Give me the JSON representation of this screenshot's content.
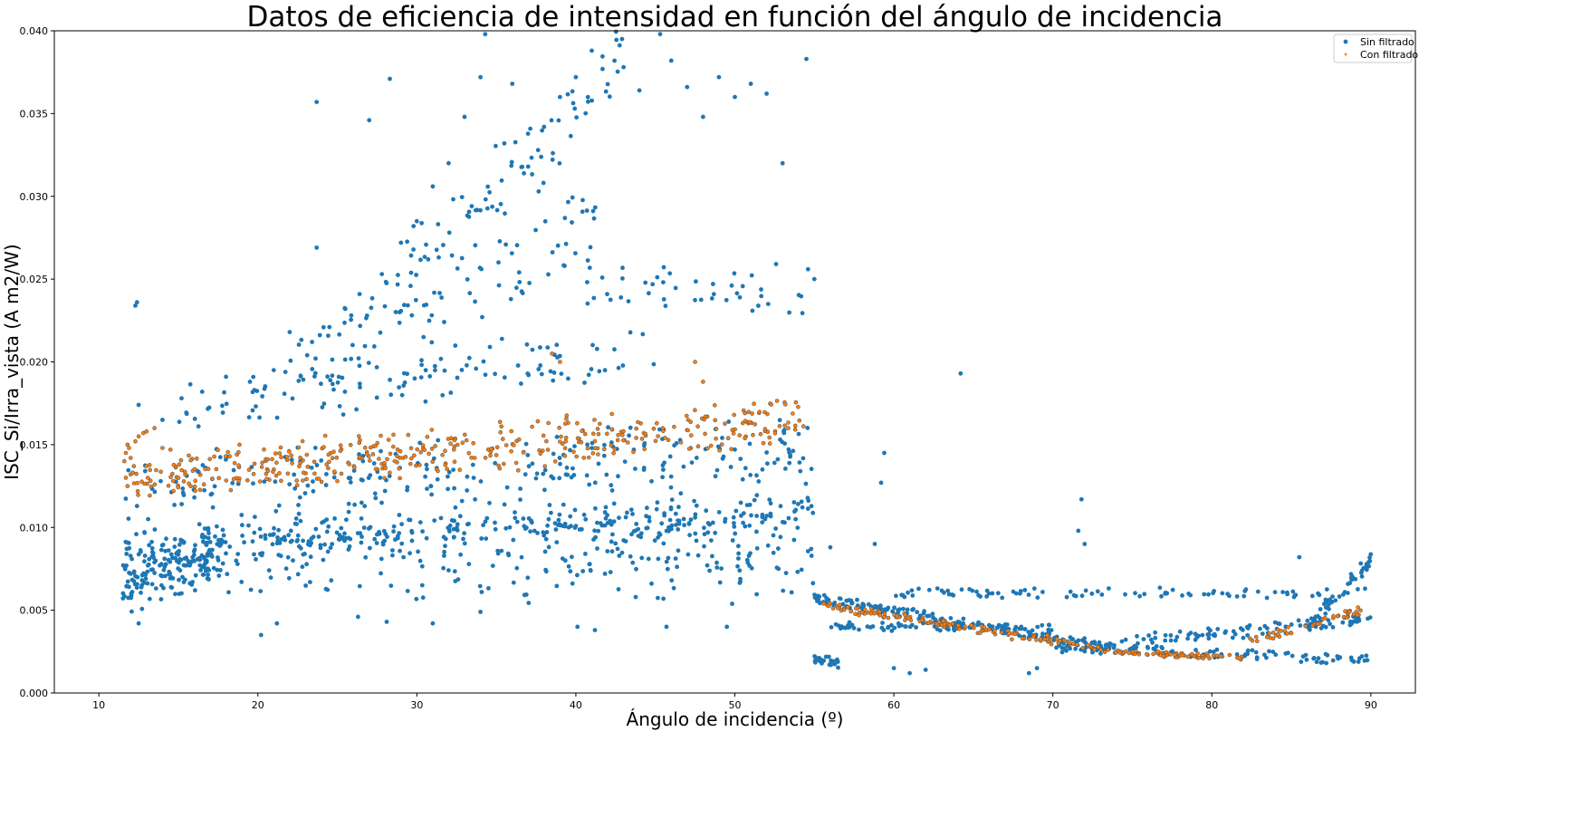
{
  "chart_data": {
    "type": "scatter",
    "title": "Datos de eficiencia de intensidad en función del ángulo de incidencia",
    "xlabel": "Ángulo de incidencia (º)",
    "ylabel": "ISC_Si/Irra_vista (A m2/W)",
    "xlim": [
      7.2,
      92.8
    ],
    "ylim": [
      0.0,
      0.04
    ],
    "x_ticks": [
      10,
      20,
      30,
      40,
      50,
      60,
      70,
      80,
      90
    ],
    "x_tick_labels": [
      "10",
      "20",
      "30",
      "40",
      "50",
      "60",
      "70",
      "80",
      "90"
    ],
    "y_ticks": [
      0.0,
      0.005,
      0.01,
      0.015,
      0.02,
      0.025,
      0.03,
      0.035,
      0.04
    ],
    "y_tick_labels": [
      "0.000",
      "0.005",
      "0.010",
      "0.015",
      "0.020",
      "0.025",
      "0.030",
      "0.035",
      "0.040"
    ],
    "grid": false,
    "legend_position": "top-right",
    "series": [
      {
        "name": "Sin filtrado",
        "color": "#1f77b4",
        "marker": "large-dot",
        "values": [
          [
            12.3,
            0.0234
          ],
          [
            12.4,
            0.0236
          ],
          [
            12.5,
            0.0174
          ],
          [
            12.5,
            0.0042
          ],
          [
            13.1,
            0.0105
          ],
          [
            14.0,
            0.0165
          ],
          [
            15.2,
            0.0178
          ],
          [
            16.5,
            0.0182
          ],
          [
            18.0,
            0.0191
          ],
          [
            19.5,
            0.0188
          ],
          [
            21.0,
            0.0195
          ],
          [
            22.0,
            0.0218
          ],
          [
            23.1,
            0.0204
          ],
          [
            23.7,
            0.0357
          ],
          [
            23.7,
            0.0269
          ],
          [
            24.5,
            0.0221
          ],
          [
            25.5,
            0.0232
          ],
          [
            26.4,
            0.0241
          ],
          [
            27.0,
            0.0346
          ],
          [
            27.8,
            0.0253
          ],
          [
            28.3,
            0.0371
          ],
          [
            29.0,
            0.0272
          ],
          [
            30.0,
            0.0285
          ],
          [
            31.0,
            0.0306
          ],
          [
            32.0,
            0.032
          ],
          [
            33.0,
            0.0348
          ],
          [
            34.0,
            0.0372
          ],
          [
            34.3,
            0.0398
          ],
          [
            35.5,
            0.0332
          ],
          [
            36.0,
            0.0368
          ],
          [
            37.0,
            0.0318
          ],
          [
            38.0,
            0.0342
          ],
          [
            39.0,
            0.036
          ],
          [
            40.0,
            0.0372
          ],
          [
            41.0,
            0.0388
          ],
          [
            42.0,
            0.0402
          ],
          [
            43.0,
            0.0378
          ],
          [
            44.0,
            0.0364
          ],
          [
            45.3,
            0.0398
          ],
          [
            46.0,
            0.0382
          ],
          [
            47.0,
            0.0366
          ],
          [
            48.0,
            0.0348
          ],
          [
            49.0,
            0.0372
          ],
          [
            50.0,
            0.036
          ],
          [
            51.0,
            0.0368
          ],
          [
            52.0,
            0.0362
          ],
          [
            53.0,
            0.032
          ],
          [
            54.5,
            0.0383
          ],
          [
            55.0,
            0.025
          ],
          [
            54.6,
            0.0256
          ],
          [
            20.2,
            0.0035
          ],
          [
            21.2,
            0.0042
          ],
          [
            26.3,
            0.0046
          ],
          [
            28.1,
            0.0043
          ],
          [
            31.0,
            0.0042
          ],
          [
            34.0,
            0.0049
          ],
          [
            40.1,
            0.004
          ],
          [
            41.2,
            0.0038
          ],
          [
            45.7,
            0.004
          ],
          [
            49.5,
            0.004
          ],
          [
            54.8,
            0.0087
          ],
          [
            56.0,
            0.0088
          ],
          [
            58.8,
            0.009
          ],
          [
            59.2,
            0.0127
          ],
          [
            59.4,
            0.0145
          ],
          [
            64.2,
            0.0193
          ],
          [
            71.6,
            0.0098
          ],
          [
            71.8,
            0.0117
          ],
          [
            72.0,
            0.009
          ],
          [
            85.5,
            0.0082
          ],
          [
            60.0,
            0.0015
          ],
          [
            61.0,
            0.0012
          ],
          [
            62.0,
            0.0014
          ],
          [
            68.5,
            0.0012
          ],
          [
            69.0,
            0.0015
          ]
        ],
        "bands": [
          {
            "x_from": 11.5,
            "x_to": 55.0,
            "y_from": 0.009,
            "y_to": 0.0108,
            "y_spread": 0.0014,
            "count": 320
          },
          {
            "x_from": 11.5,
            "x_to": 18.0,
            "y_from": 0.0065,
            "y_to": 0.0085,
            "y_spread": 0.002,
            "count": 170
          },
          {
            "x_from": 18.0,
            "x_to": 55.0,
            "y_from": 0.0085,
            "y_to": 0.008,
            "y_spread": 0.003,
            "count": 220
          },
          {
            "x_from": 11.5,
            "x_to": 55.0,
            "y_from": 0.012,
            "y_to": 0.0145,
            "y_spread": 0.0025,
            "count": 240
          },
          {
            "x_from": 15.0,
            "x_to": 45.0,
            "y_from": 0.017,
            "y_to": 0.021,
            "y_spread": 0.002,
            "count": 110
          },
          {
            "x_from": 22.0,
            "x_to": 42.0,
            "y_from": 0.019,
            "y_to": 0.029,
            "y_spread": 0.003,
            "count": 90
          },
          {
            "x_from": 26.0,
            "x_to": 43.0,
            "y_from": 0.022,
            "y_to": 0.038,
            "y_spread": 0.003,
            "count": 90
          },
          {
            "x_from": 40.0,
            "x_to": 55.0,
            "y_from": 0.025,
            "y_to": 0.024,
            "y_spread": 0.002,
            "count": 45
          },
          {
            "x_from": 55.0,
            "x_to": 56.5,
            "y_from": 0.0021,
            "y_to": 0.0018,
            "y_spread": 0.0003,
            "count": 25
          },
          {
            "x_from": 55.0,
            "x_to": 72.0,
            "y_from": 0.0058,
            "y_to": 0.003,
            "y_spread": 0.0004,
            "count": 160
          },
          {
            "x_from": 72.0,
            "x_to": 90.0,
            "y_from": 0.0028,
            "y_to": 0.0045,
            "y_spread": 0.0005,
            "count": 110
          },
          {
            "x_from": 60.0,
            "x_to": 90.0,
            "y_from": 0.006,
            "y_to": 0.006,
            "y_spread": 0.0004,
            "count": 90
          },
          {
            "x_from": 70.0,
            "x_to": 90.0,
            "y_from": 0.0028,
            "y_to": 0.002,
            "y_spread": 0.0004,
            "count": 95
          },
          {
            "x_from": 86.0,
            "x_to": 90.0,
            "y_from": 0.004,
            "y_to": 0.008,
            "y_spread": 0.0006,
            "count": 50
          },
          {
            "x_from": 56.0,
            "x_to": 70.0,
            "y_from": 0.004,
            "y_to": 0.004,
            "y_spread": 0.0003,
            "count": 70
          }
        ]
      },
      {
        "name": "Con filtrado",
        "color": "#ff7f0e",
        "marker": "small-dot",
        "values": [
          [
            11.6,
            0.014
          ],
          [
            11.7,
            0.0145
          ],
          [
            11.8,
            0.015
          ],
          [
            11.9,
            0.0148
          ],
          [
            12.0,
            0.0142
          ],
          [
            11.7,
            0.013
          ],
          [
            11.8,
            0.0125
          ],
          [
            12.0,
            0.0132
          ],
          [
            12.2,
            0.0137
          ],
          [
            12.3,
            0.0152
          ],
          [
            12.5,
            0.0155
          ],
          [
            12.8,
            0.0157
          ],
          [
            13.0,
            0.0158
          ],
          [
            13.5,
            0.016
          ],
          [
            14.0,
            0.0148
          ],
          [
            14.5,
            0.0147
          ],
          [
            38.5,
            0.0205
          ],
          [
            39.0,
            0.02
          ],
          [
            47.5,
            0.02
          ],
          [
            48.0,
            0.0188
          ]
        ],
        "bands": [
          {
            "x_from": 12.0,
            "x_to": 54.5,
            "y_from": 0.013,
            "y_to": 0.0165,
            "y_spread": 0.0016,
            "count": 420
          },
          {
            "x_from": 55.5,
            "x_to": 73.0,
            "y_from": 0.0053,
            "y_to": 0.0027,
            "y_spread": 0.0003,
            "count": 150
          },
          {
            "x_from": 73.0,
            "x_to": 82.0,
            "y_from": 0.0025,
            "y_to": 0.0021,
            "y_spread": 0.0002,
            "count": 80
          },
          {
            "x_from": 82.0,
            "x_to": 89.5,
            "y_from": 0.003,
            "y_to": 0.005,
            "y_spread": 0.0003,
            "count": 45
          }
        ]
      }
    ]
  }
}
